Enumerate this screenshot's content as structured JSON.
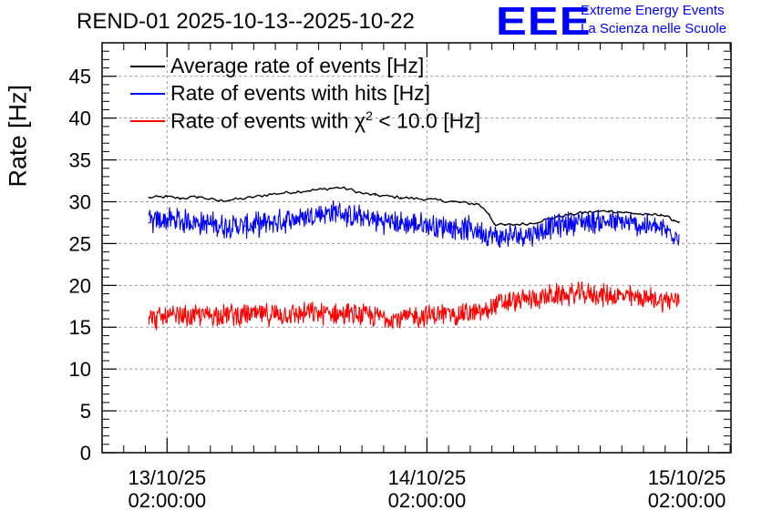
{
  "header": {
    "title": "REND-01 2025-10-13--2025-10-22",
    "logo_text": "EEE",
    "org_line1": "Extreme Energy Events",
    "org_line2": "La Scienza nelle Scuole"
  },
  "chart_data": {
    "type": "line",
    "title": "REND-01 2025-10-13--2025-10-22",
    "xlabel": "",
    "ylabel": "Rate [Hz]",
    "ylim": [
      0,
      49
    ],
    "xlim": [
      -0.25,
      2.17
    ],
    "yticks": [
      0,
      5,
      10,
      15,
      20,
      25,
      30,
      35,
      40,
      45
    ],
    "ytick_labels": [
      "0",
      "5",
      "10",
      "15",
      "20",
      "25",
      "30",
      "35",
      "40",
      "45"
    ],
    "xticks": [
      0,
      1,
      2
    ],
    "xtick_labels": [
      {
        "date": "13/10/25",
        "time": "02:00:00"
      },
      {
        "date": "14/10/25",
        "time": "02:00:00"
      },
      {
        "date": "15/10/25",
        "time": "02:00:00"
      }
    ],
    "grid": true,
    "legend_position": "top-left",
    "series": [
      {
        "name": "Average rate of events [Hz]",
        "color": "#000000",
        "style": "smooth",
        "x": [
          -0.07,
          0.0,
          0.05,
          0.12,
          0.2,
          0.3,
          0.4,
          0.5,
          0.6,
          0.66,
          0.7,
          0.75,
          0.8,
          0.9,
          1.0,
          1.1,
          1.2,
          1.24,
          1.26,
          1.3,
          1.4,
          1.5,
          1.6,
          1.7,
          1.8,
          1.85,
          1.9,
          1.95,
          1.97
        ],
        "values": [
          30.5,
          30.6,
          30.4,
          30.6,
          30.1,
          30.4,
          30.9,
          31.2,
          31.5,
          31.7,
          31.5,
          31.0,
          30.8,
          30.5,
          30.3,
          30.0,
          29.7,
          28.5,
          27.3,
          27.2,
          27.4,
          28.2,
          28.7,
          28.9,
          28.6,
          28.4,
          28.5,
          27.8,
          27.6
        ]
      },
      {
        "name": "Rate of events with hits [Hz]",
        "color": "#0000ff",
        "style": "noisy",
        "noise": 1.7,
        "x": [
          -0.07,
          0.0,
          0.1,
          0.2,
          0.3,
          0.4,
          0.5,
          0.6,
          0.66,
          0.7,
          0.8,
          0.9,
          1.0,
          1.1,
          1.2,
          1.24,
          1.26,
          1.3,
          1.4,
          1.5,
          1.6,
          1.7,
          1.8,
          1.9,
          1.97
        ],
        "values": [
          27.5,
          27.9,
          27.6,
          27.2,
          27.1,
          27.5,
          28.0,
          28.6,
          28.8,
          28.3,
          27.8,
          27.4,
          27.2,
          27.0,
          26.6,
          26.0,
          25.8,
          25.8,
          26.2,
          27.2,
          27.7,
          27.6,
          27.3,
          26.8,
          26.0
        ]
      },
      {
        "name": "Rate of events with χ² < 10.0 [Hz]",
        "legend_prefix": "Rate of events with χ",
        "legend_sup": "2",
        "legend_suffix": " < 10.0 [Hz]",
        "color": "#ff0000",
        "style": "noisy",
        "noise": 1.6,
        "x": [
          -0.07,
          0.0,
          0.1,
          0.2,
          0.3,
          0.4,
          0.5,
          0.6,
          0.7,
          0.8,
          0.9,
          1.0,
          1.1,
          1.2,
          1.24,
          1.26,
          1.3,
          1.4,
          1.5,
          1.6,
          1.7,
          1.8,
          1.9,
          1.97
        ],
        "values": [
          16.1,
          16.2,
          16.3,
          16.6,
          16.5,
          16.5,
          16.6,
          16.7,
          16.5,
          16.3,
          16.1,
          16.4,
          16.6,
          16.7,
          17.1,
          17.7,
          17.9,
          18.4,
          18.8,
          19.0,
          18.8,
          18.6,
          18.3,
          18.2
        ]
      }
    ]
  }
}
